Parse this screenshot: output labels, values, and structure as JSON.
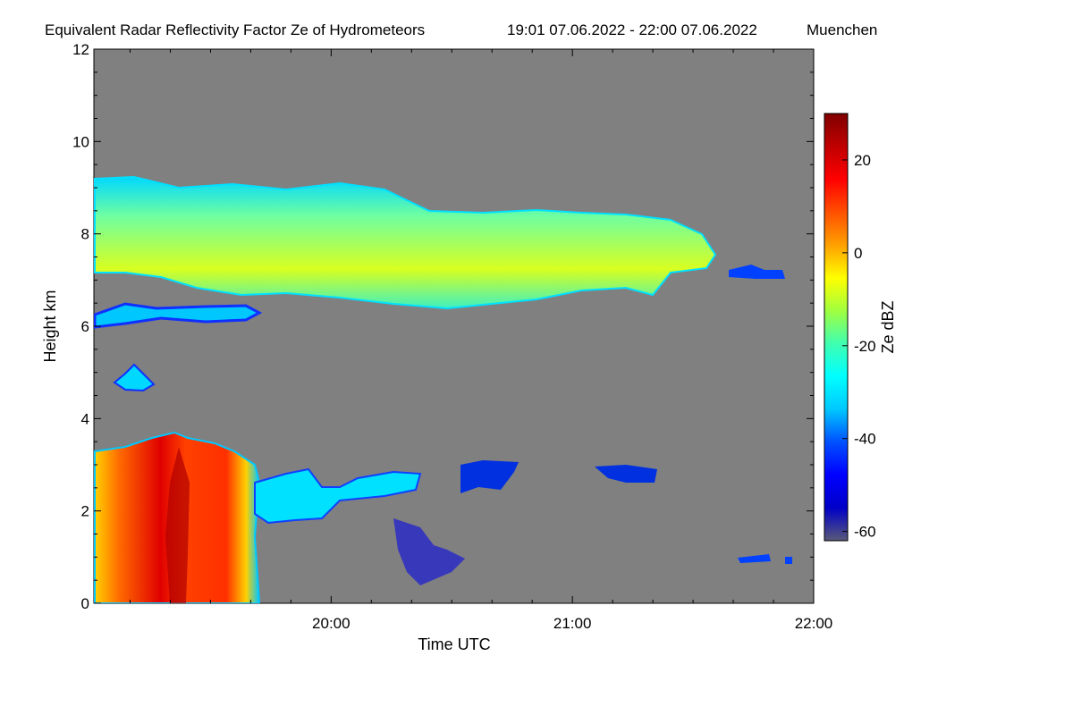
{
  "chart_data": {
    "type": "heatmap",
    "title": "Equivalent Radar Reflectivity Factor Ze of Hydrometeors",
    "time_range": "19:01 07.06.2022 - 22:00 07.06.2022",
    "location": "Muenchen",
    "xlabel": "Time UTC",
    "ylabel": "Height km",
    "xlim": [
      "19:01",
      "22:00"
    ],
    "ylim": [
      0,
      12
    ],
    "x_ticks": [
      "20:00",
      "21:00",
      "22:00"
    ],
    "y_ticks": [
      "0",
      "2",
      "4",
      "6",
      "8",
      "10",
      "12"
    ],
    "background_color": "#808080",
    "colorbar": {
      "label": "Ze dBZ",
      "range": [
        -62,
        30
      ],
      "ticks": [
        "-60",
        "-40",
        "-20",
        "0",
        "20"
      ],
      "colors": [
        "#5a5a78",
        "#0000c8",
        "#0000ff",
        "#0050ff",
        "#00c8ff",
        "#00ffff",
        "#40ffb0",
        "#a0ff40",
        "#ffff00",
        "#ffa000",
        "#ff5000",
        "#ff0000",
        "#c00000",
        "#800000"
      ]
    },
    "features": [
      {
        "name": "upper cloud layer",
        "start": "19:01",
        "end": "21:35",
        "base_km": 6.5,
        "top_km": 9.0,
        "ze_dbz": -5
      },
      {
        "name": "lower precipitation cell",
        "start": "19:01",
        "end": "19:42",
        "base_km": 0.0,
        "top_km": 3.7,
        "ze_dbz": 20
      },
      {
        "name": "low-level cloud fragments",
        "start": "19:42",
        "end": "20:50",
        "base_km": 1.8,
        "top_km": 3.0,
        "ze_dbz": -30
      }
    ]
  }
}
